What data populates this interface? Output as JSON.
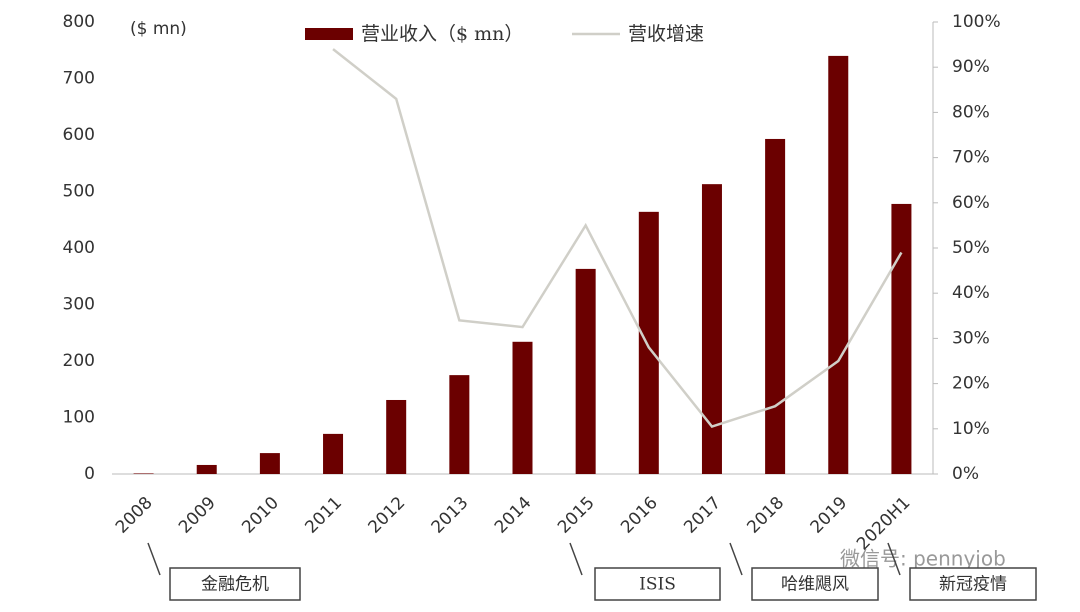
{
  "chart_data": {
    "type": "bar-line",
    "categories": [
      "2008",
      "2009",
      "2010",
      "2011",
      "2012",
      "2013",
      "2014",
      "2015",
      "2016",
      "2017",
      "2018",
      "2019",
      "2020H1"
    ],
    "series": [
      {
        "name": "营业收入（$ mn）",
        "type": "bar",
        "color": "#6b0000",
        "values": [
          1,
          16,
          37,
          71,
          131,
          175,
          234,
          363,
          464,
          513,
          593,
          740,
          478
        ]
      },
      {
        "name": "营收增速",
        "type": "line",
        "axis": "y2",
        "color": "#d0cfc8",
        "values": [
          null,
          null,
          null,
          94,
          83,
          34,
          32.5,
          55,
          28,
          10.5,
          15,
          25,
          49
        ]
      }
    ],
    "y_unit": "($ mn)",
    "ylim": [
      0,
      800
    ],
    "yticks": [
      0,
      100,
      200,
      300,
      400,
      500,
      600,
      700,
      800
    ],
    "y2lim": [
      0,
      100
    ],
    "y2ticks": [
      {
        "value": 0,
        "label": "0%"
      },
      {
        "value": 10,
        "label": "10%"
      },
      {
        "value": 20,
        "label": "20%"
      },
      {
        "value": 30,
        "label": "30%"
      },
      {
        "value": 40,
        "label": "40%"
      },
      {
        "value": 50,
        "label": "50%"
      },
      {
        "value": 60,
        "label": "60%"
      },
      {
        "value": 70,
        "label": "70%"
      },
      {
        "value": 80,
        "label": "80%"
      },
      {
        "value": 90,
        "label": "90%"
      },
      {
        "value": 100,
        "label": "100%"
      }
    ],
    "annotations": [
      "金融危机",
      "ISIS",
      "哈维飓风",
      "新冠疫情"
    ],
    "watermark": "微信号: pennyjob",
    "legend": "top"
  }
}
